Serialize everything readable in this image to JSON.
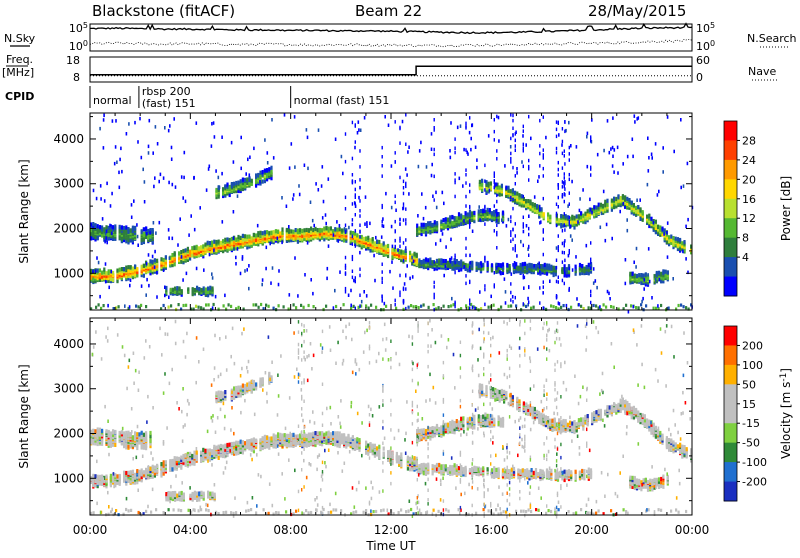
{
  "header": {
    "station": "Blackstone (fitACF)",
    "beam": "Beam 22",
    "date": "28/May/2015"
  },
  "chart_data": [
    {
      "panel": "noise",
      "type": "line",
      "left_label": "N.Sky",
      "right_label": "N.Search",
      "tick_labels": [
        "10^5",
        "10^0"
      ],
      "series": [
        {
          "name": "N.Sky",
          "style": "solid",
          "values": [
            4.6,
            4.7,
            4.6,
            4.5,
            4.5,
            4.4,
            4.3,
            4.3,
            4.2,
            4.2,
            4.1,
            4.1,
            4.0,
            3.9,
            3.8,
            3.7,
            3.7,
            3.8,
            3.9,
            4.1,
            4.3,
            4.5,
            4.7,
            4.8,
            4.8
          ]
        },
        {
          "name": "N.Search",
          "style": "dotted",
          "values": [
            1.2,
            1.3,
            1.2,
            1.1,
            1.2,
            1.1,
            1.0,
            1.1,
            1.0,
            0.9,
            1.0,
            0.9,
            0.9,
            0.8,
            0.8,
            0.9,
            0.9,
            1.0,
            1.1,
            1.2,
            1.3,
            1.4,
            1.6,
            1.8,
            1.9
          ]
        }
      ]
    },
    {
      "panel": "freq-nave",
      "type": "line",
      "left_label": "Freq.",
      "left_unit": "[MHz]",
      "left_ticks": [
        "18",
        "8"
      ],
      "right_label": "Nave",
      "right_ticks": [
        "60",
        "0"
      ],
      "freq_steps": [
        {
          "t": 0,
          "v": 10.5
        },
        {
          "t": 13.0,
          "v": 10.5
        },
        {
          "t": 13.0,
          "v": 14.5
        },
        {
          "t": 24,
          "v": 14.5
        }
      ],
      "nave_steps": [
        {
          "t": 0,
          "v": 12
        },
        {
          "t": 24,
          "v": 12
        }
      ]
    },
    {
      "panel": "cpid",
      "type": "table",
      "label": "CPID",
      "segments": [
        {
          "start": 0.0,
          "text": "normal"
        },
        {
          "start": 1.95,
          "text": "rbsp 200"
        },
        {
          "start": 1.95,
          "text": "(fast) 151"
        },
        {
          "start": 8.0,
          "text": "normal (fast) 151"
        }
      ]
    },
    {
      "panel": "power",
      "type": "heatmap",
      "ylabel": "Slant Range [km]",
      "ylim": [
        180,
        4580
      ],
      "yticks": [
        1000,
        2000,
        3000,
        4000
      ],
      "colorbar_label": "Power [dB]",
      "colorbar_ticks": [
        28,
        24,
        20,
        16,
        12,
        8,
        4
      ],
      "colorbar_colors": [
        "#0000ff",
        "#1a4fb0",
        "#2f7e3c",
        "#55b832",
        "#b8e030",
        "#ffd700",
        "#ff9a00",
        "#ff4000",
        "#ff0000"
      ],
      "bands": [
        {
          "t0": 0,
          "t1": 13.0,
          "r": [
            1000,
            1000,
            1100,
            1250,
            1450,
            1600,
            1700,
            1800,
            1900,
            1900,
            1950,
            1900,
            1700,
            1500,
            1350
          ],
          "w": 260,
          "strength": 0.85
        },
        {
          "t0": 0,
          "t1": 2.5,
          "r": [
            2000,
            1950,
            1950,
            1900,
            1900,
            1900
          ],
          "w": 320,
          "strength": 0.35
        },
        {
          "t0": 5.0,
          "t1": 7.2,
          "r": [
            2850,
            2950,
            3100,
            3300
          ],
          "w": 220,
          "strength": 0.45
        },
        {
          "t0": 13.0,
          "t1": 16.5,
          "r": [
            2000,
            2100,
            2250,
            2350,
            2300
          ],
          "w": 220,
          "strength": 0.4
        },
        {
          "t0": 13.0,
          "t1": 20.0,
          "r": [
            1250,
            1250,
            1200,
            1150,
            1150,
            1100,
            1150
          ],
          "w": 180,
          "strength": 0.3
        },
        {
          "t0": 15.5,
          "t1": 24.0,
          "r": [
            3000,
            2900,
            2600,
            2250,
            2200,
            2450,
            2700,
            2300,
            1800,
            1550
          ],
          "w": 230,
          "strength": 0.6
        },
        {
          "t0": 3.0,
          "t1": 5.0,
          "r": [
            650,
            650,
            650
          ],
          "w": 150,
          "strength": 0.4
        },
        {
          "t0": 21.5,
          "t1": 23.0,
          "r": [
            950,
            900,
            1000
          ],
          "w": 200,
          "strength": 0.45
        }
      ]
    },
    {
      "panel": "velocity",
      "type": "heatmap",
      "ylabel": "Slant Range [km]",
      "ylim": [
        180,
        4580
      ],
      "yticks": [
        1000,
        2000,
        3000,
        4000
      ],
      "xlabel": "Time UT",
      "xticks": [
        "00:00",
        "04:00",
        "08:00",
        "12:00",
        "16:00",
        "20:00",
        "00:00"
      ],
      "colorbar_label": "Velocity [m s^-1]",
      "colorbar_ticks": [
        200,
        100,
        50,
        15,
        -15,
        -50,
        -100,
        -200
      ],
      "colorbar_colors": [
        "#1a2fc0",
        "#2070d0",
        "#2f8a38",
        "#7fd040",
        "#c0c0c0",
        "#c0c0c0",
        "#ffb000",
        "#ff7000",
        "#ff0000"
      ]
    }
  ]
}
